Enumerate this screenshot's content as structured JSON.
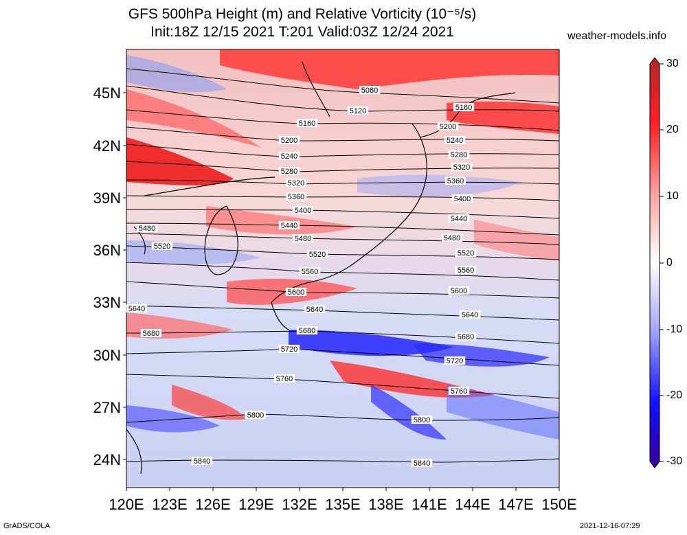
{
  "title": {
    "line1": "GFS 500hPa Height (m) and Relative Vorticity (10⁻⁵/s)",
    "line2": "Init:18Z 12/15 2021 T:201 Valid:03Z 12/24 2021"
  },
  "site": "weather-models.info",
  "lat_labels": [
    "45N",
    "42N",
    "39N",
    "36N",
    "33N",
    "30N",
    "27N",
    "24N"
  ],
  "lon_labels": [
    "120E",
    "123E",
    "126E",
    "129E",
    "132E",
    "135E",
    "138E",
    "141E",
    "144E",
    "147E",
    "150E"
  ],
  "colorbar": {
    "labels": [
      "30",
      "20",
      "10",
      "0",
      "-10",
      "-20",
      "-30"
    ],
    "colors": [
      "#b3242a",
      "#ff0000",
      "#ffaaaa",
      "#ffffff",
      "#aaaaff",
      "#0000ff",
      "#3a0099"
    ]
  },
  "contour_labels": [
    "5080",
    "5120",
    "5160",
    "5160",
    "5200",
    "5200",
    "5240",
    "5240",
    "5280",
    "5280",
    "5320",
    "5320",
    "5360",
    "5360",
    "5400",
    "5400",
    "5440",
    "5440",
    "5480",
    "5480",
    "5480",
    "5520",
    "5520",
    "5520",
    "5560",
    "5560",
    "5600",
    "5600",
    "5640",
    "5640",
    "5640",
    "5680",
    "5680",
    "5680",
    "5720",
    "5720",
    "5760",
    "5760",
    "5800",
    "5800",
    "5840",
    "5840"
  ],
  "footer": {
    "left": "GrADS/COLA",
    "right": "2021-12-16-07:29"
  }
}
